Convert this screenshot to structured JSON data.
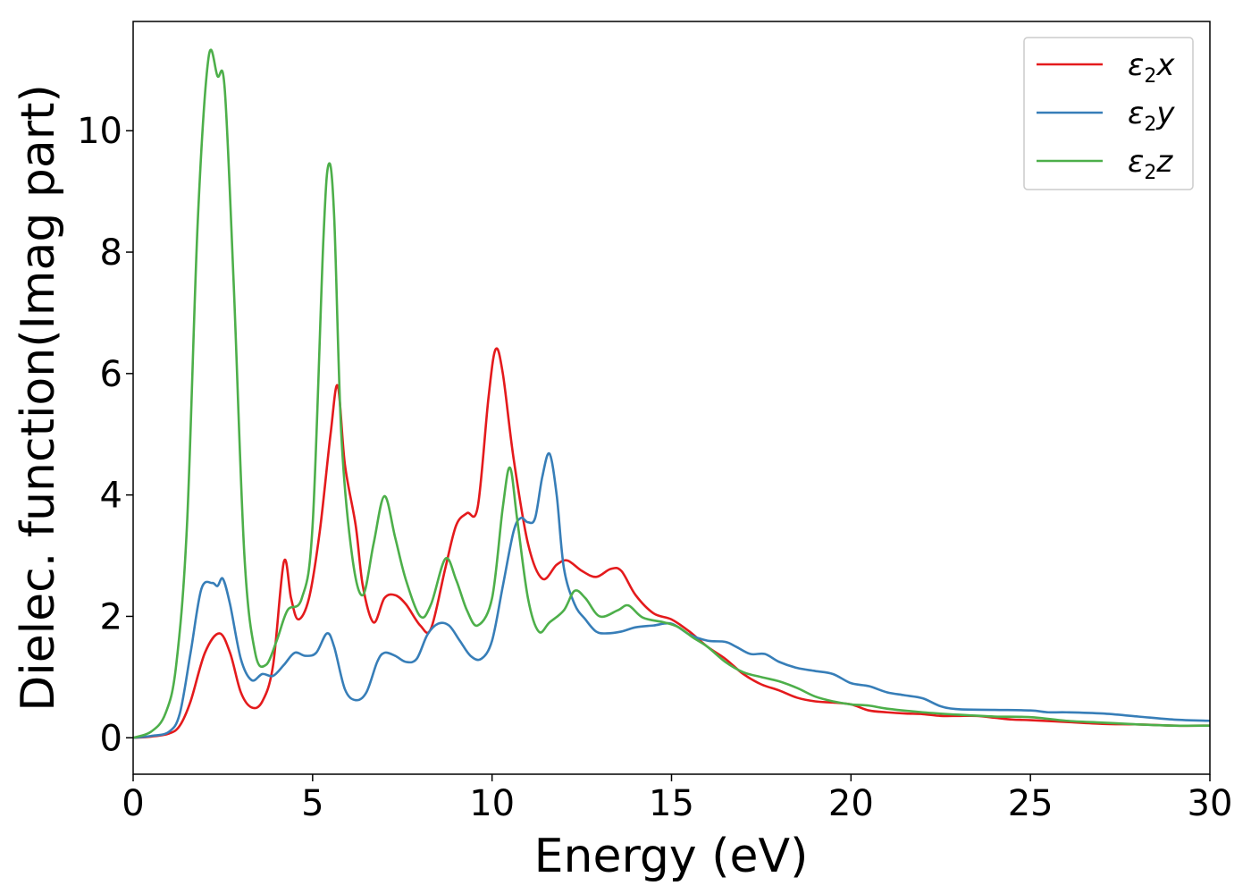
{
  "chart_data": {
    "type": "line",
    "xlabel": "Energy (eV)",
    "ylabel": "Dielec. function(Imag part)",
    "xlim": [
      0,
      30
    ],
    "ylim": [
      -0.6,
      11.8
    ],
    "xticks": [
      0,
      5,
      10,
      15,
      20,
      25,
      30
    ],
    "yticks": [
      0,
      2,
      4,
      6,
      8,
      10
    ],
    "grid": false,
    "legend_position": "top-right",
    "legend": [
      {
        "base": "ε",
        "sub": "2",
        "var": "x",
        "color": "#e41a1c"
      },
      {
        "base": "ε",
        "sub": "2",
        "var": "y",
        "color": "#377eb8"
      },
      {
        "base": "ε",
        "sub": "2",
        "var": "z",
        "color": "#4daf4a"
      }
    ],
    "series": [
      {
        "name": "ε2x",
        "color": "#e41a1c",
        "points": [
          [
            0,
            0
          ],
          [
            0.5,
            0.02
          ],
          [
            1,
            0.07
          ],
          [
            1.3,
            0.2
          ],
          [
            1.6,
            0.6
          ],
          [
            2,
            1.4
          ],
          [
            2.4,
            1.72
          ],
          [
            2.7,
            1.4
          ],
          [
            3,
            0.75
          ],
          [
            3.3,
            0.5
          ],
          [
            3.6,
            0.6
          ],
          [
            3.9,
            1.2
          ],
          [
            4.2,
            2.9
          ],
          [
            4.4,
            2.3
          ],
          [
            4.6,
            1.95
          ],
          [
            4.9,
            2.3
          ],
          [
            5.2,
            3.4
          ],
          [
            5.5,
            5.0
          ],
          [
            5.7,
            5.8
          ],
          [
            5.9,
            4.5
          ],
          [
            6.2,
            3.5
          ],
          [
            6.4,
            2.5
          ],
          [
            6.7,
            1.9
          ],
          [
            7,
            2.3
          ],
          [
            7.3,
            2.35
          ],
          [
            7.6,
            2.2
          ],
          [
            8,
            1.85
          ],
          [
            8.3,
            1.8
          ],
          [
            8.7,
            2.8
          ],
          [
            9,
            3.5
          ],
          [
            9.3,
            3.7
          ],
          [
            9.6,
            3.8
          ],
          [
            9.9,
            5.6
          ],
          [
            10.1,
            6.4
          ],
          [
            10.3,
            6.0
          ],
          [
            10.6,
            4.6
          ],
          [
            11,
            3.2
          ],
          [
            11.4,
            2.62
          ],
          [
            11.8,
            2.85
          ],
          [
            12.1,
            2.92
          ],
          [
            12.5,
            2.75
          ],
          [
            12.9,
            2.65
          ],
          [
            13.3,
            2.78
          ],
          [
            13.6,
            2.75
          ],
          [
            14,
            2.35
          ],
          [
            14.5,
            2.05
          ],
          [
            15,
            1.95
          ],
          [
            15.5,
            1.75
          ],
          [
            16,
            1.5
          ],
          [
            16.5,
            1.3
          ],
          [
            17,
            1.05
          ],
          [
            17.5,
            0.88
          ],
          [
            18,
            0.78
          ],
          [
            18.5,
            0.66
          ],
          [
            19,
            0.6
          ],
          [
            19.5,
            0.58
          ],
          [
            20,
            0.55
          ],
          [
            20.5,
            0.45
          ],
          [
            21,
            0.42
          ],
          [
            21.5,
            0.4
          ],
          [
            22,
            0.39
          ],
          [
            22.5,
            0.36
          ],
          [
            23,
            0.36
          ],
          [
            23.5,
            0.36
          ],
          [
            24,
            0.33
          ],
          [
            24.5,
            0.3
          ],
          [
            25,
            0.29
          ],
          [
            26,
            0.26
          ],
          [
            27,
            0.23
          ],
          [
            28,
            0.22
          ],
          [
            29,
            0.2
          ],
          [
            30,
            0.2
          ]
        ]
      },
      {
        "name": "ε2y",
        "color": "#377eb8",
        "points": [
          [
            0,
            0
          ],
          [
            0.5,
            0.03
          ],
          [
            1,
            0.1
          ],
          [
            1.3,
            0.4
          ],
          [
            1.6,
            1.4
          ],
          [
            1.9,
            2.45
          ],
          [
            2.2,
            2.55
          ],
          [
            2.35,
            2.5
          ],
          [
            2.5,
            2.62
          ],
          [
            2.7,
            2.2
          ],
          [
            3,
            1.3
          ],
          [
            3.3,
            0.95
          ],
          [
            3.6,
            1.05
          ],
          [
            3.9,
            1.02
          ],
          [
            4.2,
            1.2
          ],
          [
            4.5,
            1.4
          ],
          [
            4.8,
            1.35
          ],
          [
            5.1,
            1.4
          ],
          [
            5.4,
            1.72
          ],
          [
            5.6,
            1.5
          ],
          [
            5.9,
            0.8
          ],
          [
            6.2,
            0.62
          ],
          [
            6.5,
            0.75
          ],
          [
            6.8,
            1.25
          ],
          [
            7,
            1.4
          ],
          [
            7.3,
            1.35
          ],
          [
            7.6,
            1.25
          ],
          [
            7.9,
            1.3
          ],
          [
            8.2,
            1.7
          ],
          [
            8.5,
            1.88
          ],
          [
            8.8,
            1.85
          ],
          [
            9.1,
            1.6
          ],
          [
            9.4,
            1.35
          ],
          [
            9.7,
            1.3
          ],
          [
            10,
            1.6
          ],
          [
            10.3,
            2.5
          ],
          [
            10.6,
            3.4
          ],
          [
            10.8,
            3.62
          ],
          [
            11,
            3.55
          ],
          [
            11.2,
            3.62
          ],
          [
            11.4,
            4.3
          ],
          [
            11.6,
            4.68
          ],
          [
            11.8,
            4.0
          ],
          [
            12,
            2.8
          ],
          [
            12.3,
            2.2
          ],
          [
            12.6,
            1.95
          ],
          [
            12.9,
            1.75
          ],
          [
            13.2,
            1.72
          ],
          [
            13.6,
            1.75
          ],
          [
            14,
            1.82
          ],
          [
            14.5,
            1.85
          ],
          [
            15,
            1.88
          ],
          [
            15.5,
            1.7
          ],
          [
            16,
            1.6
          ],
          [
            16.5,
            1.58
          ],
          [
            16.8,
            1.5
          ],
          [
            17.2,
            1.38
          ],
          [
            17.6,
            1.38
          ],
          [
            18,
            1.25
          ],
          [
            18.5,
            1.15
          ],
          [
            19,
            1.1
          ],
          [
            19.5,
            1.05
          ],
          [
            20,
            0.9
          ],
          [
            20.5,
            0.85
          ],
          [
            21,
            0.75
          ],
          [
            21.5,
            0.7
          ],
          [
            22,
            0.65
          ],
          [
            22.5,
            0.52
          ],
          [
            23,
            0.47
          ],
          [
            24,
            0.46
          ],
          [
            25,
            0.45
          ],
          [
            25.5,
            0.42
          ],
          [
            26,
            0.42
          ],
          [
            27,
            0.4
          ],
          [
            28,
            0.35
          ],
          [
            29,
            0.3
          ],
          [
            30,
            0.28
          ]
        ]
      },
      {
        "name": "ε2z",
        "color": "#4daf4a",
        "points": [
          [
            0,
            0
          ],
          [
            0.5,
            0.1
          ],
          [
            0.9,
            0.4
          ],
          [
            1.2,
            1.2
          ],
          [
            1.5,
            3.5
          ],
          [
            1.8,
            8.5
          ],
          [
            2.1,
            11.2
          ],
          [
            2.35,
            10.9
          ],
          [
            2.55,
            10.7
          ],
          [
            2.8,
            7.5
          ],
          [
            3.1,
            3.0
          ],
          [
            3.4,
            1.4
          ],
          [
            3.7,
            1.2
          ],
          [
            4,
            1.6
          ],
          [
            4.3,
            2.1
          ],
          [
            4.7,
            2.3
          ],
          [
            5,
            3.5
          ],
          [
            5.3,
            8.2
          ],
          [
            5.45,
            9.45
          ],
          [
            5.6,
            8.6
          ],
          [
            5.8,
            5.0
          ],
          [
            6.1,
            3.0
          ],
          [
            6.4,
            2.35
          ],
          [
            6.7,
            3.2
          ],
          [
            7,
            3.98
          ],
          [
            7.3,
            3.3
          ],
          [
            7.6,
            2.6
          ],
          [
            8,
            2.0
          ],
          [
            8.3,
            2.2
          ],
          [
            8.7,
            2.95
          ],
          [
            9,
            2.6
          ],
          [
            9.3,
            2.1
          ],
          [
            9.6,
            1.85
          ],
          [
            10,
            2.3
          ],
          [
            10.3,
            3.8
          ],
          [
            10.5,
            4.45
          ],
          [
            10.7,
            3.6
          ],
          [
            11,
            2.3
          ],
          [
            11.3,
            1.75
          ],
          [
            11.6,
            1.9
          ],
          [
            12,
            2.1
          ],
          [
            12.3,
            2.42
          ],
          [
            12.6,
            2.3
          ],
          [
            13,
            2.0
          ],
          [
            13.5,
            2.1
          ],
          [
            13.8,
            2.18
          ],
          [
            14.2,
            1.98
          ],
          [
            14.8,
            1.9
          ],
          [
            15.2,
            1.82
          ],
          [
            15.6,
            1.65
          ],
          [
            16,
            1.5
          ],
          [
            16.5,
            1.25
          ],
          [
            17,
            1.08
          ],
          [
            17.5,
            1.0
          ],
          [
            18,
            0.93
          ],
          [
            18.5,
            0.82
          ],
          [
            19,
            0.68
          ],
          [
            19.5,
            0.6
          ],
          [
            20,
            0.55
          ],
          [
            20.5,
            0.53
          ],
          [
            21,
            0.48
          ],
          [
            22,
            0.42
          ],
          [
            23,
            0.38
          ],
          [
            24,
            0.35
          ],
          [
            25,
            0.34
          ],
          [
            26,
            0.28
          ],
          [
            27,
            0.25
          ],
          [
            28,
            0.22
          ],
          [
            29,
            0.2
          ],
          [
            30,
            0.2
          ]
        ]
      }
    ]
  }
}
